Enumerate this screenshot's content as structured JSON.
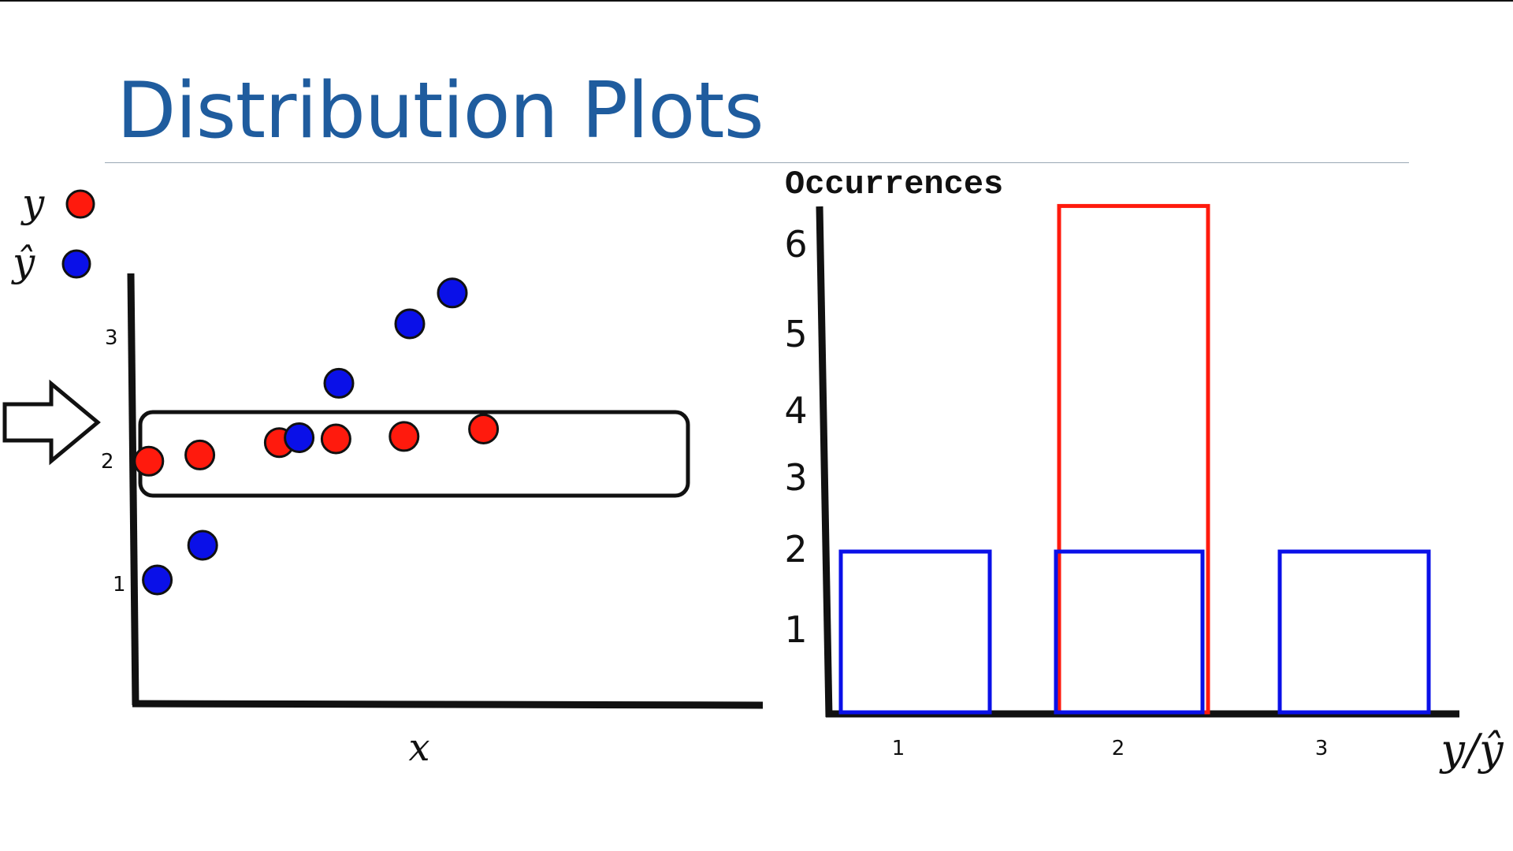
{
  "slide": {
    "title": "Distribution Plots"
  },
  "colors": {
    "title": "#1f5c9e",
    "y": "#ff1a0d",
    "y_hat": "#0a10e8"
  },
  "chart_data": [
    {
      "type": "scatter",
      "xlabel": "x",
      "ylabel": "",
      "yticks": [
        "1",
        "2",
        "3"
      ],
      "ylim": [
        0,
        3.5
      ],
      "legend": {
        "placement": "top-left",
        "entries": [
          {
            "label": "y",
            "color": "#ff1a0d"
          },
          {
            "label": "ŷ",
            "color": "#0a10e8"
          }
        ]
      },
      "series": [
        {
          "name": "y",
          "points": [
            [
              0.4,
              1.96
            ],
            [
              1.3,
              2.01
            ],
            [
              2.7,
              2.11
            ],
            [
              3.7,
              2.14
            ],
            [
              4.9,
              2.16
            ],
            [
              6.3,
              2.22
            ]
          ]
        },
        {
          "name": "ŷ",
          "points": [
            [
              0.55,
              1.0
            ],
            [
              1.35,
              1.28
            ],
            [
              3.05,
              2.15
            ],
            [
              3.75,
              2.59
            ],
            [
              5.0,
              3.07
            ],
            [
              5.75,
              3.32
            ]
          ]
        }
      ],
      "highlight": {
        "y_range": [
          1.83,
          2.3
        ],
        "marker": "arrow"
      }
    },
    {
      "type": "bar",
      "ylabel": "Occurrences",
      "xlabel": "y/ŷ",
      "categories": [
        "1",
        "2",
        "3"
      ],
      "yticks": [
        "1",
        "2",
        "3",
        "4",
        "5",
        "6"
      ],
      "ylim": [
        0,
        6.5
      ],
      "series": [
        {
          "name": "y",
          "values": [
            0,
            6.3,
            0
          ]
        },
        {
          "name": "ŷ",
          "values": [
            2,
            2,
            2
          ]
        }
      ]
    }
  ]
}
